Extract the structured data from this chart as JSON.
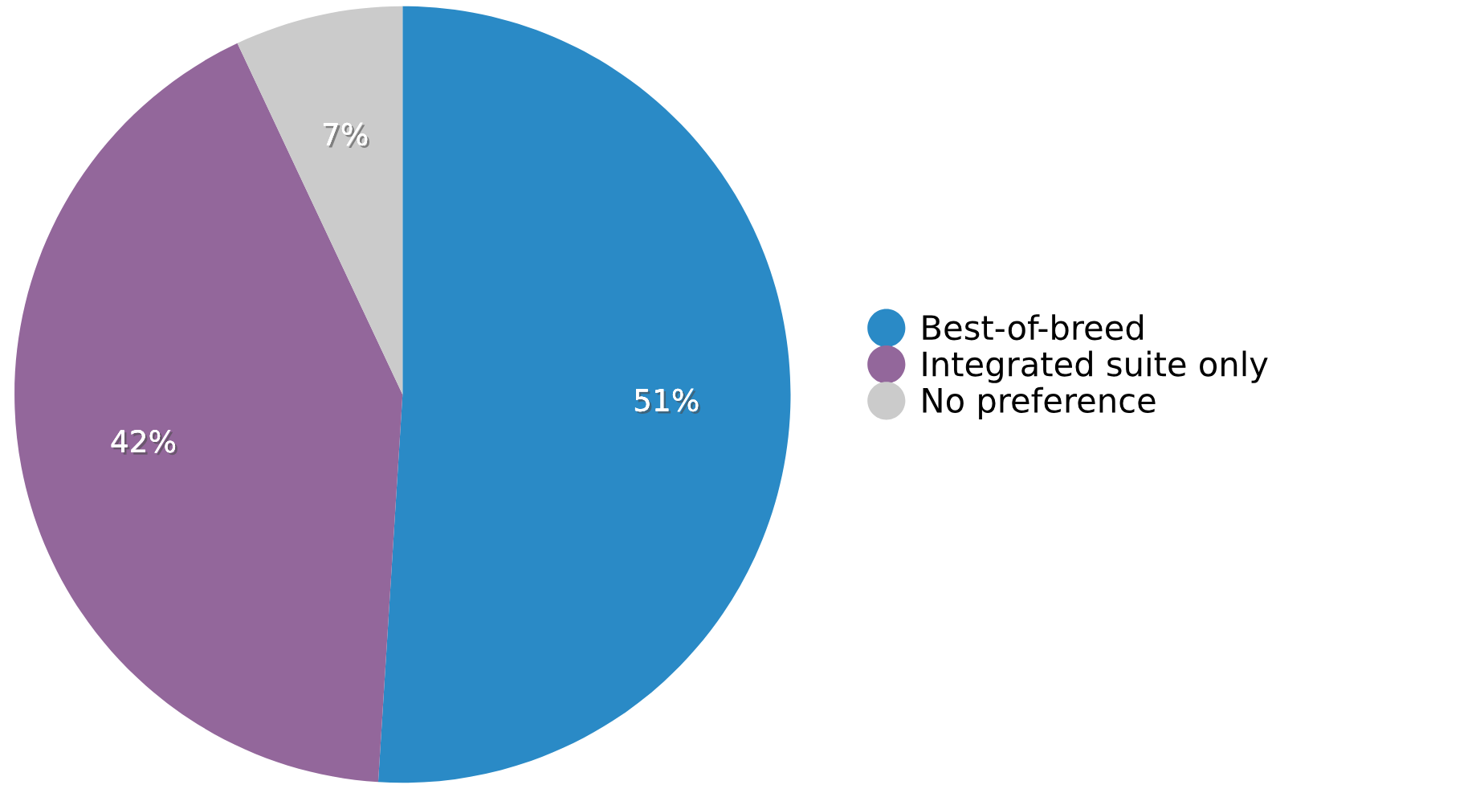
{
  "chart_data": {
    "type": "pie",
    "categories": [
      "Best-of-breed",
      "Integrated suite only",
      "No preference"
    ],
    "values": [
      51,
      42,
      7
    ],
    "colors": [
      "#2a8ac6",
      "#93679b",
      "#cbcbcb"
    ],
    "value_labels": [
      "51%",
      "42%",
      "7%"
    ],
    "legend": "right"
  }
}
